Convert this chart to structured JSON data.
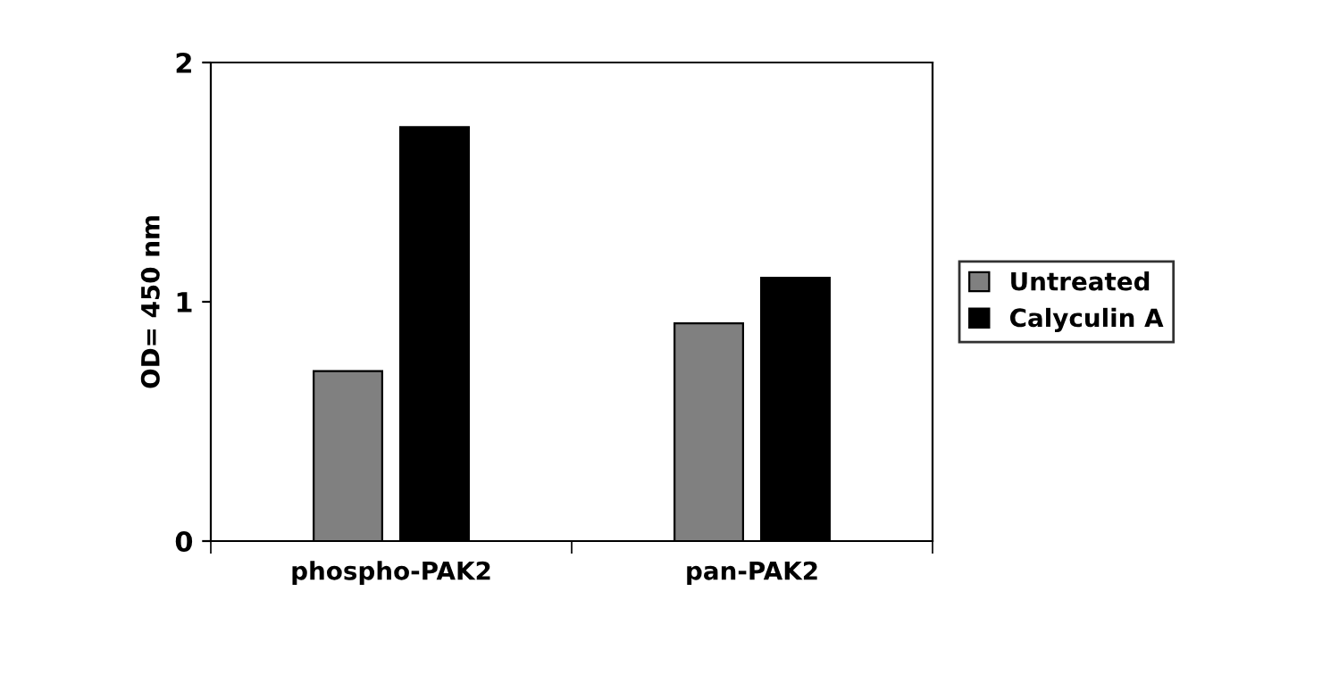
{
  "chart_data": {
    "type": "bar",
    "ylabel": "OD= 450 nm",
    "categories": [
      "phospho-PAK2",
      "pan-PAK2"
    ],
    "series": [
      {
        "name": "Untreated",
        "color": "#808080",
        "values": [
          0.71,
          0.91
        ]
      },
      {
        "name": "Calyculin A",
        "color": "#000000",
        "values": [
          1.73,
          1.1
        ]
      }
    ],
    "ylim": [
      0,
      2
    ],
    "yticks": [
      0,
      1,
      2
    ],
    "grid": false,
    "legend": "right"
  }
}
